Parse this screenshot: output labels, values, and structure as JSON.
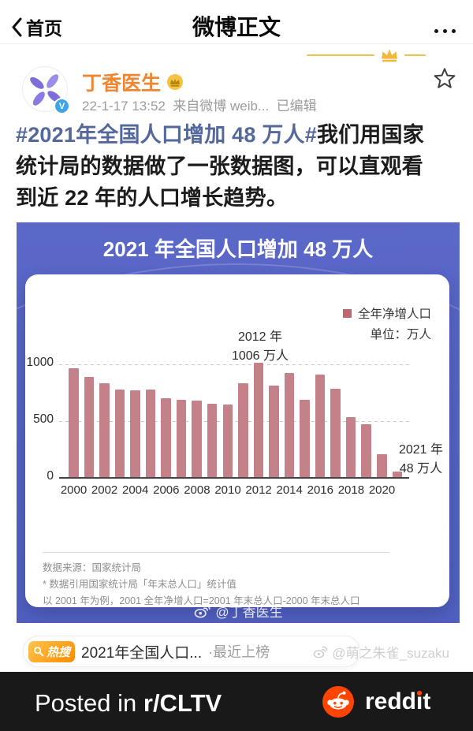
{
  "nav": {
    "back_label": "首页",
    "title": "微博正文"
  },
  "post": {
    "author": "丁香医生",
    "meta": "22-1-17 13:52  来自微博 weib...  已编辑",
    "hashtag": "#2021年全国人口增加 48 万人#",
    "body": "我们用国家\n统计局的数据做了一张数据图，可以直观看\n到近 22 年的人口增长趋势。"
  },
  "infographic": {
    "title": "2021 年全国人口增加 48 万人",
    "legend_label": "全年净增人口",
    "unit_label": "单位：万人",
    "peak_annotation": {
      "line1": "2012 年",
      "line2": "1006 万人"
    },
    "last_annotation": {
      "line1": "2021 年",
      "line2": "48 万人"
    },
    "source_lines": [
      "数据来源：国家统计局",
      "* 数据引用国家统计局「年末总人口」统计值",
      "以 2001 年为例，2001 全年净增人口=2001 年末总人口-2000 年末总人口"
    ],
    "watermark": "@丁香医生"
  },
  "chart_data": {
    "type": "bar",
    "title": "2021 年全国人口增加 48 万人",
    "categories": [
      2000,
      2001,
      2002,
      2003,
      2004,
      2005,
      2006,
      2007,
      2008,
      2009,
      2010,
      2011,
      2012,
      2013,
      2014,
      2015,
      2016,
      2017,
      2018,
      2019,
      2020,
      2021
    ],
    "values": [
      957,
      884,
      826,
      774,
      761,
      768,
      692,
      681,
      673,
      648,
      641,
      825,
      1006,
      804,
      920,
      680,
      906,
      779,
      530,
      467,
      204,
      48
    ],
    "series_name": "全年净增人口",
    "unit": "万人",
    "xlabel": "",
    "ylabel": "万人",
    "ylim": [
      0,
      1000
    ],
    "yticks": [
      0,
      500,
      1000
    ],
    "xtick_labels": [
      "2000",
      "2002",
      "2004",
      "2006",
      "2008",
      "2010",
      "2012",
      "2014",
      "2016",
      "2018",
      "2020"
    ],
    "grid": "horizontal-dashed",
    "legend_position": "top-right",
    "bar_color": "#c5818a"
  },
  "hot_search": {
    "badge": "热搜",
    "text": "2021年全国人口...",
    "suffix": "·最近上榜"
  },
  "reposter_watermark": "@萌之朱雀_suzaku",
  "footer": {
    "posted_prefix": "Posted in ",
    "subreddit": "r/CLTV",
    "brand": "reddit"
  },
  "colors": {
    "accent_orange": "#ee8633",
    "hashtag_blue": "#55689c",
    "infographic_bg": "#5663c4",
    "bar_pink": "#c5818a",
    "reddit_orange": "#ff4500",
    "footer_bg": "#191919"
  }
}
